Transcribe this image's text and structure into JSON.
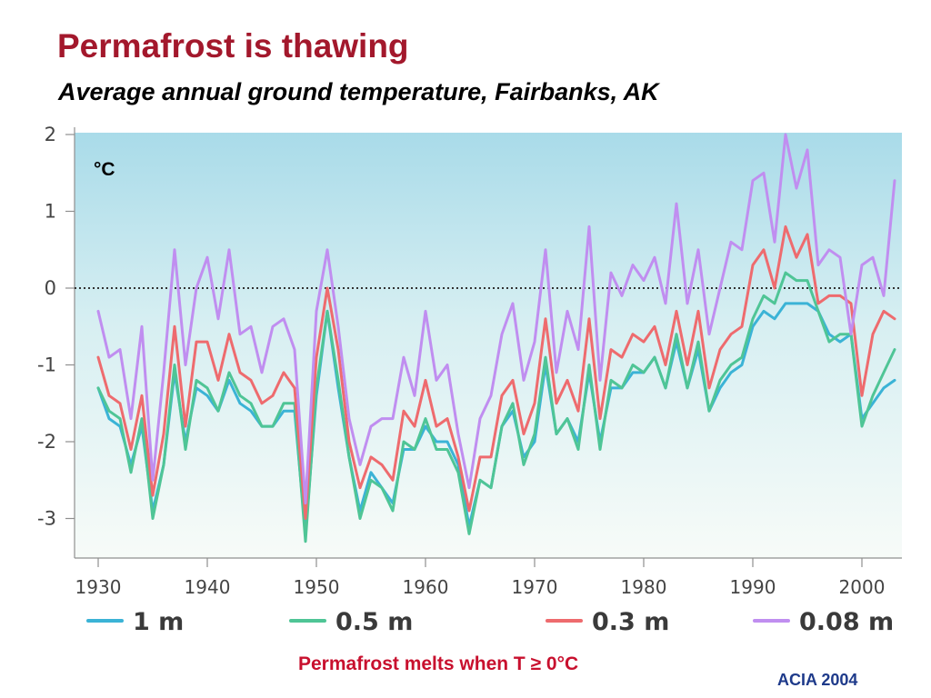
{
  "title": "Permafrost is thawing",
  "subtitle": "Average annual ground temperature, Fairbanks, AK",
  "footer_note": "Permafrost melts when T ≥ 0°C",
  "source": "ACIA 2004",
  "chart_data": {
    "type": "line",
    "unit_label": "°C",
    "xlabel": "",
    "ylabel": "",
    "xlim": [
      1929,
      2004
    ],
    "ylim": [
      -3.5,
      2.1
    ],
    "x_ticks": [
      1930,
      1940,
      1950,
      1960,
      1970,
      1980,
      1990,
      2000
    ],
    "y_ticks": [
      -3,
      -2,
      -1,
      0,
      1,
      2
    ],
    "reference_line": {
      "y": 0,
      "style": "dotted"
    },
    "grid": false,
    "background": "gradient light blue",
    "legend_position": "bottom",
    "x": [
      1930,
      1931,
      1932,
      1933,
      1934,
      1935,
      1936,
      1937,
      1938,
      1939,
      1940,
      1941,
      1942,
      1943,
      1944,
      1945,
      1946,
      1947,
      1948,
      1949,
      1950,
      1951,
      1952,
      1953,
      1954,
      1955,
      1956,
      1957,
      1958,
      1959,
      1960,
      1961,
      1962,
      1963,
      1964,
      1965,
      1966,
      1967,
      1968,
      1969,
      1970,
      1971,
      1972,
      1973,
      1974,
      1975,
      1976,
      1977,
      1978,
      1979,
      1980,
      1981,
      1982,
      1983,
      1984,
      1985,
      1986,
      1987,
      1988,
      1989,
      1990,
      1991,
      1992,
      1993,
      1994,
      1995,
      1996,
      1997,
      1998,
      1999,
      2000,
      2001,
      2002,
      2003
    ],
    "series": [
      {
        "name": "1 m",
        "color": "#3bb3d6",
        "values": [
          -1.3,
          -1.7,
          -1.8,
          -2.3,
          -1.8,
          -2.9,
          -2.3,
          -1.1,
          -2.0,
          -1.3,
          -1.4,
          -1.6,
          -1.2,
          -1.5,
          -1.6,
          -1.8,
          -1.8,
          -1.6,
          -1.6,
          -3.2,
          -1.4,
          -0.3,
          -1.3,
          -2.2,
          -2.9,
          -2.4,
          -2.6,
          -2.8,
          -2.1,
          -2.1,
          -1.8,
          -2.0,
          -2.0,
          -2.3,
          -3.1,
          -2.5,
          -2.6,
          -1.8,
          -1.6,
          -2.2,
          -2.0,
          -1.0,
          -1.9,
          -1.7,
          -2.0,
          -1.1,
          -2.0,
          -1.3,
          -1.3,
          -1.1,
          -1.1,
          -0.9,
          -1.3,
          -0.7,
          -1.3,
          -0.8,
          -1.6,
          -1.3,
          -1.1,
          -1.0,
          -0.5,
          -0.3,
          -0.4,
          -0.2,
          -0.2,
          -0.2,
          -0.3,
          -0.6,
          -0.7,
          -0.6,
          -1.7,
          -1.5,
          -1.3,
          -1.2
        ]
      },
      {
        "name": "0.5 m",
        "color": "#4fc596",
        "values": [
          -1.3,
          -1.6,
          -1.7,
          -2.4,
          -1.7,
          -3.0,
          -2.3,
          -1.0,
          -2.1,
          -1.2,
          -1.3,
          -1.6,
          -1.1,
          -1.4,
          -1.5,
          -1.8,
          -1.8,
          -1.5,
          -1.5,
          -3.3,
          -1.3,
          -0.3,
          -1.2,
          -2.2,
          -3.0,
          -2.5,
          -2.6,
          -2.9,
          -2.0,
          -2.1,
          -1.7,
          -2.1,
          -2.1,
          -2.4,
          -3.2,
          -2.5,
          -2.6,
          -1.8,
          -1.5,
          -2.3,
          -1.9,
          -0.9,
          -1.9,
          -1.7,
          -2.1,
          -1.0,
          -2.1,
          -1.2,
          -1.3,
          -1.0,
          -1.1,
          -0.9,
          -1.3,
          -0.6,
          -1.3,
          -0.7,
          -1.6,
          -1.2,
          -1.0,
          -0.9,
          -0.4,
          -0.1,
          -0.2,
          0.2,
          0.1,
          0.1,
          -0.3,
          -0.7,
          -0.6,
          -0.6,
          -1.8,
          -1.4,
          -1.1,
          -0.8
        ]
      },
      {
        "name": "0.3 m",
        "color": "#ee6b6e",
        "values": [
          -0.9,
          -1.4,
          -1.5,
          -2.1,
          -1.4,
          -2.7,
          -1.9,
          -0.5,
          -1.8,
          -0.7,
          -0.7,
          -1.2,
          -0.6,
          -1.1,
          -1.2,
          -1.5,
          -1.4,
          -1.1,
          -1.3,
          -3.0,
          -0.9,
          0.0,
          -0.8,
          -2.0,
          -2.6,
          -2.2,
          -2.3,
          -2.5,
          -1.6,
          -1.8,
          -1.2,
          -1.8,
          -1.7,
          -2.2,
          -2.9,
          -2.2,
          -2.2,
          -1.4,
          -1.2,
          -1.9,
          -1.5,
          -0.4,
          -1.5,
          -1.2,
          -1.6,
          -0.4,
          -1.7,
          -0.8,
          -0.9,
          -0.6,
          -0.7,
          -0.5,
          -1.0,
          -0.3,
          -1.0,
          -0.3,
          -1.3,
          -0.8,
          -0.6,
          -0.5,
          0.3,
          0.5,
          0.0,
          0.8,
          0.4,
          0.7,
          -0.2,
          -0.1,
          -0.1,
          -0.2,
          -1.4,
          -0.6,
          -0.3,
          -0.4
        ]
      },
      {
        "name": "0.08 m",
        "color": "#c08ef0",
        "values": [
          -0.3,
          -0.9,
          -0.8,
          -1.7,
          -0.5,
          -2.5,
          -1.1,
          0.5,
          -1.0,
          0.0,
          0.4,
          -0.4,
          0.5,
          -0.6,
          -0.5,
          -1.1,
          -0.5,
          -0.4,
          -0.8,
          -2.8,
          -0.3,
          0.5,
          -0.5,
          -1.7,
          -2.3,
          -1.8,
          -1.7,
          -1.7,
          -0.9,
          -1.4,
          -0.3,
          -1.2,
          -1.0,
          -1.9,
          -2.6,
          -1.7,
          -1.4,
          -0.6,
          -0.2,
          -1.2,
          -0.7,
          0.5,
          -1.1,
          -0.3,
          -0.8,
          0.8,
          -1.2,
          0.2,
          -0.1,
          0.3,
          0.1,
          0.4,
          -0.2,
          1.1,
          -0.2,
          0.5,
          -0.6,
          0.0,
          0.6,
          0.5,
          1.4,
          1.5,
          0.6,
          2.0,
          1.3,
          1.8,
          0.3,
          0.5,
          0.4,
          -0.6,
          0.3,
          0.4,
          -0.1,
          1.4
        ]
      }
    ]
  }
}
